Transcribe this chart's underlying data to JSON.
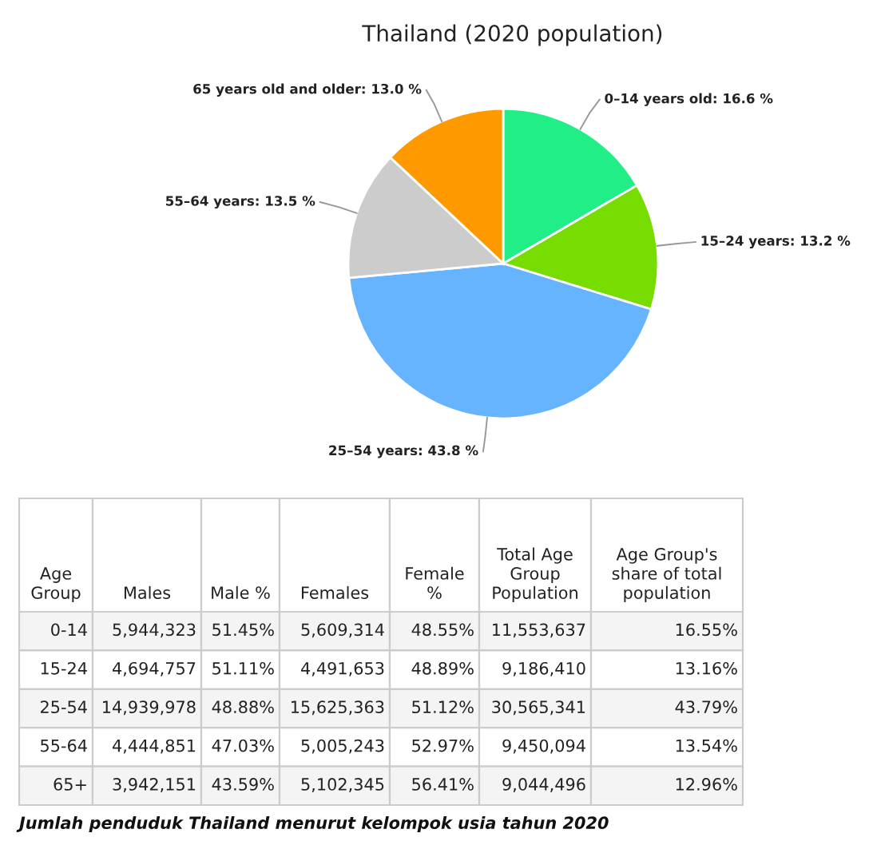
{
  "chart_data": [
    {
      "type": "pie",
      "title": "Thailand (2020 population)",
      "categories": [
        "0–14 years old",
        "15–24 years",
        "25–54 years",
        "55–64 years",
        "65 years old and older"
      ],
      "values": [
        16.6,
        13.2,
        43.8,
        13.5,
        13.0
      ],
      "value_labels": [
        "16.6 %",
        "13.2 %",
        "43.8 %",
        "13.5 %",
        "13.0 %"
      ],
      "colors": [
        "#22ee88",
        "#77dd00",
        "#66b3ff",
        "#cccccc",
        "#ff9900"
      ],
      "legend": false
    },
    {
      "type": "other",
      "categories": [
        "Age\nGroup",
        "Males",
        "Male %",
        "Females",
        "Female\n%",
        "Total Age\nGroup\nPopulation",
        "Age Group's\nshare of total\npopulation"
      ],
      "cell_labels": [
        [
          "0-14",
          "5,944,323",
          "51.45%",
          "5,609,314",
          "48.55%",
          "11,553,637",
          "16.55%"
        ],
        [
          "15-24",
          "4,694,757",
          "51.11%",
          "4,491,653",
          "48.89%",
          "9,186,410",
          "13.16%"
        ],
        [
          "25-54",
          "14,939,978",
          "48.88%",
          "15,625,363",
          "51.12%",
          "30,565,341",
          "43.79%"
        ],
        [
          "55-64",
          "4,444,851",
          "47.03%",
          "5,005,243",
          "52.97%",
          "9,450,094",
          "13.54%"
        ],
        [
          "65+",
          "3,942,151",
          "43.59%",
          "5,102,345",
          "56.41%",
          "9,044,496",
          "12.96%"
        ]
      ],
      "annotations": [
        "Jumlah penduduk Thailand menurut kelompok usia tahun 2020"
      ]
    }
  ]
}
